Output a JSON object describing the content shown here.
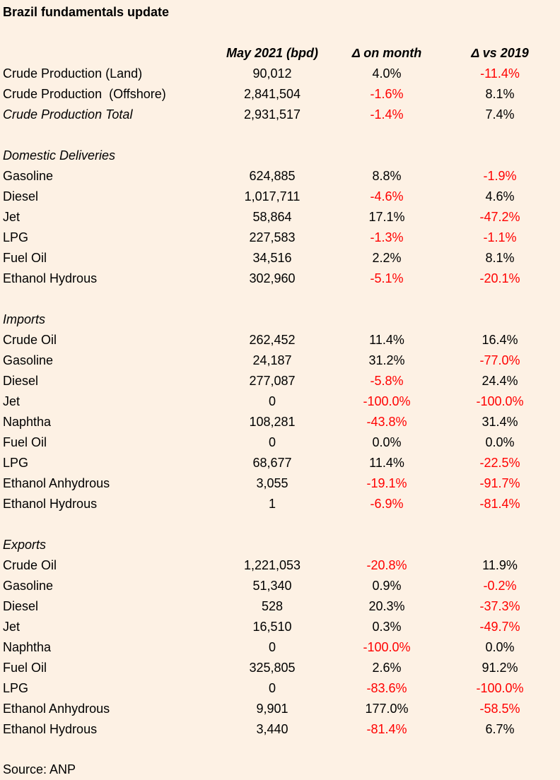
{
  "title": "Brazil fundamentals update",
  "headers": [
    "May 2021 (bpd)",
    "Δ on month",
    "Δ vs 2019"
  ],
  "rows": [
    {
      "label": "Crude Production (Land)",
      "value": "90,012",
      "mom": "4.0%",
      "vs2019": "-11.4%"
    },
    {
      "label": "Crude Production  (Offshore)",
      "value": "2,841,504",
      "mom": "-1.6%",
      "vs2019": "8.1%"
    },
    {
      "label": "Crude Production Total",
      "value": "2,931,517",
      "mom": "-1.4%",
      "vs2019": "7.4%",
      "italic": true
    },
    {
      "label": "",
      "blank": true
    },
    {
      "label": "Domestic Deliveries",
      "section": true
    },
    {
      "label": "Gasoline",
      "value": "624,885",
      "mom": "8.8%",
      "vs2019": "-1.9%"
    },
    {
      "label": "Diesel",
      "value": "1,017,711",
      "mom": "-4.6%",
      "vs2019": "4.6%"
    },
    {
      "label": "Jet",
      "value": "58,864",
      "mom": "17.1%",
      "vs2019": "-47.2%"
    },
    {
      "label": "LPG",
      "value": "227,583",
      "mom": "-1.3%",
      "vs2019": "-1.1%"
    },
    {
      "label": "Fuel Oil",
      "value": "34,516",
      "mom": "2.2%",
      "vs2019": "8.1%"
    },
    {
      "label": "Ethanol Hydrous",
      "value": "302,960",
      "mom": "-5.1%",
      "vs2019": "-20.1%"
    },
    {
      "label": "",
      "blank": true
    },
    {
      "label": "Imports",
      "section": true
    },
    {
      "label": "Crude Oil",
      "value": "262,452",
      "mom": "11.4%",
      "vs2019": "16.4%"
    },
    {
      "label": "Gasoline",
      "value": "24,187",
      "mom": "31.2%",
      "vs2019": "-77.0%"
    },
    {
      "label": "Diesel",
      "value": "277,087",
      "mom": "-5.8%",
      "vs2019": "24.4%"
    },
    {
      "label": "Jet",
      "value": "0",
      "mom": "-100.0%",
      "vs2019": "-100.0%"
    },
    {
      "label": "Naphtha",
      "value": "108,281",
      "mom": "-43.8%",
      "vs2019": "31.4%"
    },
    {
      "label": "Fuel Oil",
      "value": "0",
      "mom": "0.0%",
      "vs2019": "0.0%"
    },
    {
      "label": "LPG",
      "value": "68,677",
      "mom": "11.4%",
      "vs2019": "-22.5%"
    },
    {
      "label": "Ethanol Anhydrous",
      "value": "3,055",
      "mom": "-19.1%",
      "vs2019": "-91.7%"
    },
    {
      "label": "Ethanol Hydrous",
      "value": "1",
      "mom": "-6.9%",
      "vs2019": "-81.4%"
    },
    {
      "label": "",
      "blank": true
    },
    {
      "label": "Exports",
      "section": true
    },
    {
      "label": "Crude Oil",
      "value": "1,221,053",
      "mom": "-20.8%",
      "vs2019": "11.9%"
    },
    {
      "label": "Gasoline",
      "value": "51,340",
      "mom": "0.9%",
      "vs2019": "-0.2%"
    },
    {
      "label": "Diesel",
      "value": "528",
      "mom": "20.3%",
      "vs2019": "-37.3%"
    },
    {
      "label": "Jet",
      "value": "16,510",
      "mom": "0.3%",
      "vs2019": "-49.7%"
    },
    {
      "label": "Naphtha",
      "value": "0",
      "mom": "-100.0%",
      "vs2019": "0.0%"
    },
    {
      "label": "Fuel Oil",
      "value": "325,805",
      "mom": "2.6%",
      "vs2019": "91.2%"
    },
    {
      "label": "LPG",
      "value": "0",
      "mom": "-83.6%",
      "vs2019": "-100.0%"
    },
    {
      "label": "Ethanol Anhydrous",
      "value": "9,901",
      "mom": "177.0%",
      "vs2019": "-58.5%"
    },
    {
      "label": "Ethanol Hydrous",
      "value": "3,440",
      "mom": "-81.4%",
      "vs2019": "6.7%"
    }
  ],
  "source": "Source: ANP",
  "colors": {
    "background": "#fdf1e4",
    "negative": "#ff0000",
    "text": "#000000"
  }
}
